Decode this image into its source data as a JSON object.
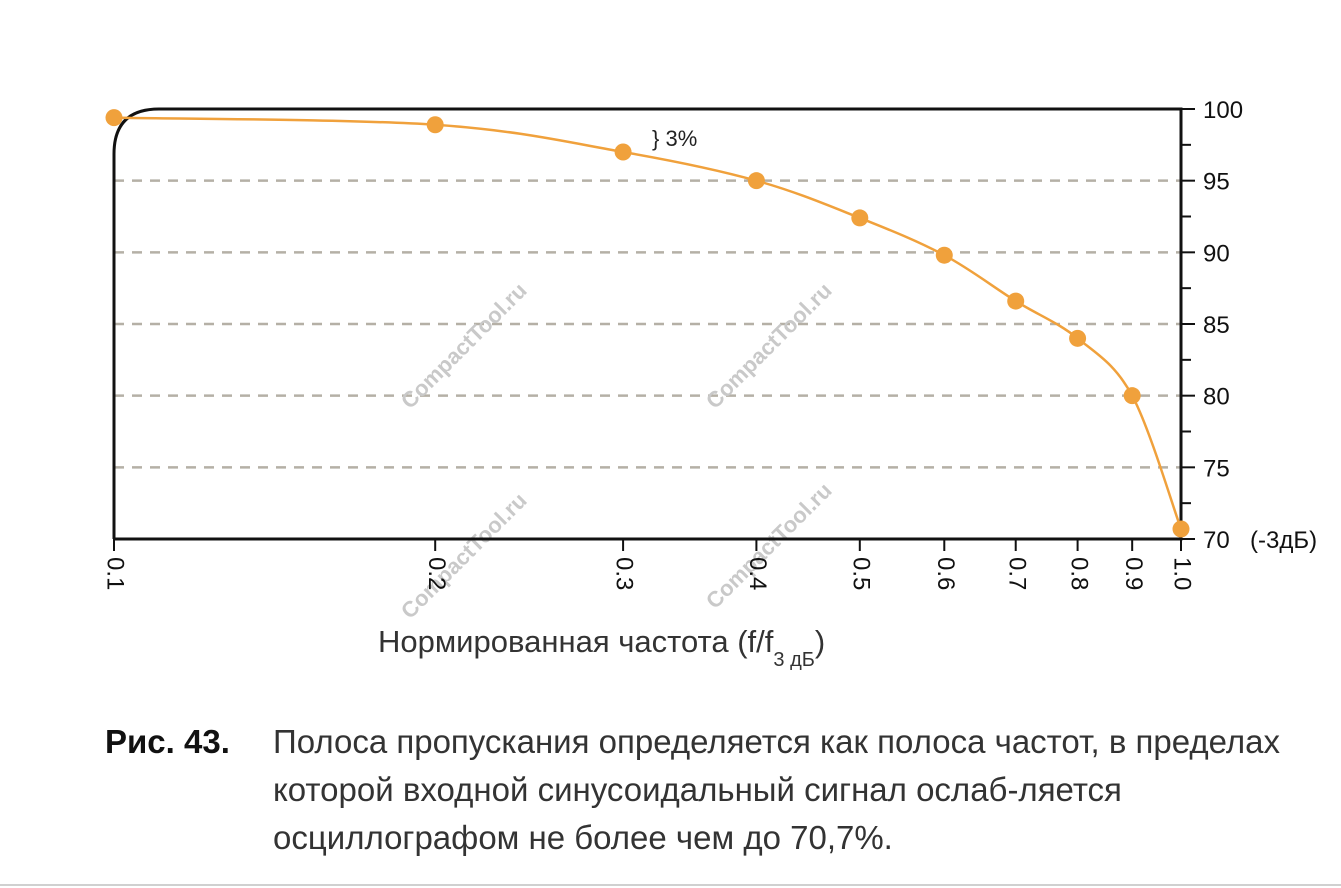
{
  "chart_data": {
    "type": "line",
    "x_scale": "log",
    "x_ticks": [
      0.1,
      0.2,
      0.3,
      0.4,
      0.5,
      0.6,
      0.7,
      0.8,
      0.9,
      1.0
    ],
    "x_tick_labels": [
      "0.1",
      "0.2",
      "0.3",
      "0.4",
      "0.5",
      "0.6",
      "0.7",
      "0.8",
      "0.9",
      "1.0"
    ],
    "xlim": [
      0.1,
      1.0
    ],
    "y_ticks": [
      70,
      75,
      80,
      85,
      90,
      95,
      100
    ],
    "y_tick_labels": [
      "70",
      "75",
      "80",
      "85",
      "90",
      "95",
      "100"
    ],
    "ylim": [
      70,
      100
    ],
    "y_axis_side": "right",
    "grid": "horizontal dashed",
    "xlabel": "Нормированная частота (f/f",
    "xlabel_sub": "3 дБ",
    "xlabel_close": ")",
    "y_extra_label": "(-3дБ)",
    "annotation": "} 3%",
    "series": [
      {
        "color": "#f0a13c",
        "x": [
          0.1,
          0.2,
          0.3,
          0.4,
          0.5,
          0.6,
          0.7,
          0.8,
          0.9,
          1.0
        ],
        "y": [
          99.4,
          98.9,
          97.0,
          95.0,
          92.4,
          89.8,
          86.6,
          84.0,
          80.0,
          70.7
        ]
      }
    ]
  },
  "watermark": "CompactTool.ru",
  "caption": {
    "number": "Рис. 43.",
    "text": "Полоса пропускания определяется как полоса частот, в пределах которой входной синусоидальный сигнал ослаб-ляется осциллографом не более чем до 70,7%."
  }
}
